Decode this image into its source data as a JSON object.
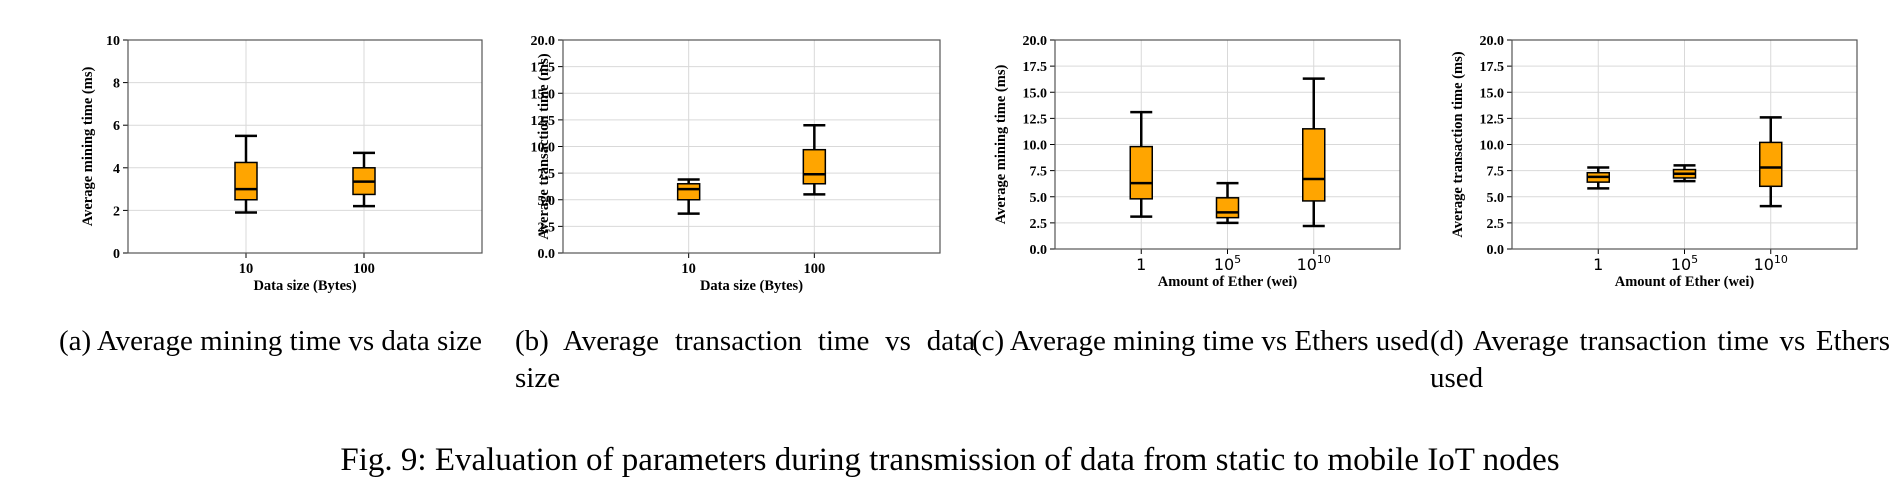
{
  "figure_caption": "Fig. 9: Evaluation of parameters during transmission of data from static to mobile IoT nodes",
  "subcaptions": [
    "(a) Average mining time vs data size",
    "(b) Average transaction time vs data size",
    "(c) Average mining time vs Ethers used",
    "(d) Average transaction time vs Ethers used"
  ],
  "colors": {
    "box_fill": "#FFA500",
    "box_edge": "#000000",
    "grid": "#d9d9d9",
    "axes": "#555555"
  },
  "chart_data": [
    {
      "type": "box",
      "title": "",
      "categories": [
        "10",
        "100"
      ],
      "xlabel": "Data size (Bytes)",
      "ylabel": "Average mining time (ms)",
      "ylim": [
        0,
        10
      ],
      "yticks": [
        "0",
        "2",
        "4",
        "6",
        "8",
        "10"
      ],
      "grid": true,
      "boxes": [
        {
          "whislo": 1.9,
          "q1": 2.5,
          "med": 3.0,
          "q3": 4.25,
          "whishi": 5.5
        },
        {
          "whislo": 2.2,
          "q1": 2.75,
          "med": 3.35,
          "q3": 4.0,
          "whishi": 4.7
        }
      ]
    },
    {
      "type": "box",
      "title": "",
      "categories": [
        "10",
        "100"
      ],
      "xlabel": "Data size (Bytes)",
      "ylabel": "Average transaction time (ms)",
      "ylim": [
        0,
        20
      ],
      "yticks": [
        "0.0",
        "2.5",
        "5.0",
        "7.5",
        "10.0",
        "12.5",
        "15.0",
        "17.5",
        "20.0"
      ],
      "grid": true,
      "boxes": [
        {
          "whislo": 3.7,
          "q1": 5.0,
          "med": 6.0,
          "q3": 6.5,
          "whishi": 6.9
        },
        {
          "whislo": 5.5,
          "q1": 6.5,
          "med": 7.4,
          "q3": 9.7,
          "whishi": 12.0
        }
      ]
    },
    {
      "type": "box",
      "title": "",
      "categories": [
        "1",
        "10^5",
        "10^10"
      ],
      "xlabel": "Amount of Ether (wei)",
      "ylabel": "Average mining time (ms)",
      "ylim": [
        0,
        20
      ],
      "yticks": [
        "0.0",
        "2.5",
        "5.0",
        "7.5",
        "10.0",
        "12.5",
        "15.0",
        "17.5",
        "20.0"
      ],
      "grid": true,
      "boxes": [
        {
          "whislo": 3.1,
          "q1": 4.8,
          "med": 6.3,
          "q3": 9.8,
          "whishi": 13.1
        },
        {
          "whislo": 2.5,
          "q1": 3.0,
          "med": 3.5,
          "q3": 4.9,
          "whishi": 6.3
        },
        {
          "whislo": 2.2,
          "q1": 4.6,
          "med": 6.7,
          "q3": 11.5,
          "whishi": 16.3
        }
      ]
    },
    {
      "type": "box",
      "title": "",
      "categories": [
        "1",
        "10^5",
        "10^10"
      ],
      "xlabel": "Amount of Ether (wei)",
      "ylabel": "Average transaction time (ms)",
      "ylim": [
        0,
        20
      ],
      "yticks": [
        "0.0",
        "2.5",
        "5.0",
        "7.5",
        "10.0",
        "12.5",
        "15.0",
        "17.5",
        "20.0"
      ],
      "grid": true,
      "boxes": [
        {
          "whislo": 5.8,
          "q1": 6.4,
          "med": 6.9,
          "q3": 7.3,
          "whishi": 7.8
        },
        {
          "whislo": 6.5,
          "q1": 6.8,
          "med": 7.2,
          "q3": 7.6,
          "whishi": 8.0
        },
        {
          "whislo": 4.1,
          "q1": 6.0,
          "med": 7.8,
          "q3": 10.2,
          "whishi": 12.6
        }
      ]
    }
  ]
}
